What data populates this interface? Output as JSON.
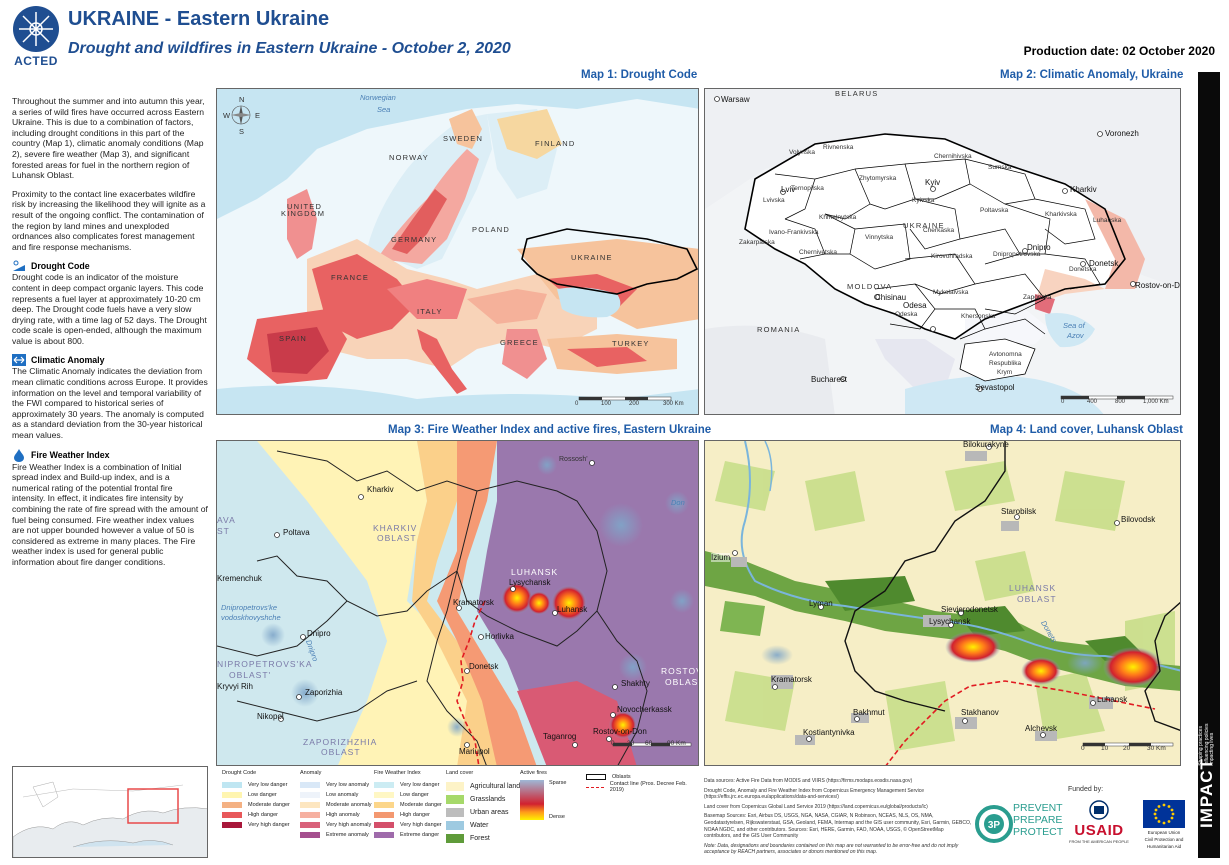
{
  "header": {
    "org": "ACTED",
    "title": "UKRAINE - Eastern Ukraine",
    "subtitle": "Drought and wildfires in Eastern Ukraine - October 2, 2020",
    "production_date": "Production date: 02 October 2020"
  },
  "side": {
    "intro_1": "Throughout the summer and into autumn this year, a series of wild fires have occurred across Eastern Ukraine. This is due to a combination of factors, including drought conditions in this part of the country (Map 1), climatic anomaly conditions (Map 2), severe fire weather (Map 3), and significant forested areas for fuel in the northern region of Luhansk Oblast.",
    "intro_2": "Proximity to the contact line exacerbates wildfire risk by increasing the likelihood they will ignite as a result of the ongoing conflict. The contamination of the region by land mines and unexploded ordnances also complicates forest management and fire response mechanisms.",
    "drought_title": "Drought Code",
    "drought_text": "Drought code is an indicator of the moisture content in deep compact organic layers. This code represents a fuel layer at approximately 10-20 cm deep. The Drought code fuels have a very slow drying rate, with a time lag of 52 days. The Drought code scale is open-ended, although the maximum value is about 800.",
    "anomaly_title": "Climatic Anomaly",
    "anomaly_text": "The Climatic Anomaly indicates the deviation from mean climatic conditions across Europe. It provides information on the level and temporal variability of the FWI compared to historical series of approximately 30 years. The anomaly is computed as a standard deviation from the 30-year historical mean values.",
    "fwi_title": "Fire Weather Index",
    "fwi_text": "Fire Weather Index is a combination of Initial spread index and Build-up index, and is a numerical rating of the potential frontal fire intensity. In effect, it indicates fire intensity by combining the rate of fire spread with the amount of fuel being consumed. Fire weather index values are not upper bounded however a value of 50 is considered as extreme in many places. The Fire weather index is used for general public information about fire danger conditions."
  },
  "map1": {
    "title": "Map 1: Drought Code",
    "labels": {
      "norwegian_sea": "Norwegian",
      "norwegian_sea2": "Sea",
      "sweden": "SWEDEN",
      "finland": "FINLAND",
      "norway": "NORWAY",
      "uk": "UNITED",
      "uk2": "KINGDOM",
      "germany": "GERMANY",
      "poland": "POLAND",
      "ukraine": "UKRAINE",
      "france": "FRANCE",
      "italy": "ITALY",
      "spain": "SPAIN",
      "greece": "GREECE",
      "turkey": "TURKEY"
    },
    "compass": {
      "n": "N",
      "s": "S",
      "e": "E",
      "w": "W"
    },
    "scale": [
      "0",
      "100",
      "200",
      "300 Km"
    ]
  },
  "map2": {
    "title": "Map 2: Climatic Anomaly, Ukraine",
    "labels": {
      "belarus": "BELARUS",
      "warsaw": "Warsaw",
      "voronezh": "Voronezh",
      "volynska": "Volynska",
      "rivnenska": "Rivnenska",
      "chernihivska": "Chernihivska",
      "sumska": "Sumska",
      "zhytomyrska": "Zhytomyrska",
      "kyiv": "Kyiv",
      "lviv": "Lviv",
      "lvivska": "Lvivska",
      "ternopilska": "Ternopilska",
      "khmelnytska": "Khmelnytska",
      "kyivska": "Kyivska",
      "poltavska": "Poltavska",
      "kharkiv": "Kharkiv",
      "kharkivska": "Kharkivska",
      "luhanska": "Luhanska",
      "ivano": "Ivano-Frankivska",
      "vinnytska": "Vinnytska",
      "ukraine": "UKRAINE",
      "cherkaska": "Cherkaska",
      "zakarpatska": "Zakarpatska",
      "chernivetska": "Chernivetska",
      "kirovohradska": "Kirovohradska",
      "dnipro": "Dnipro",
      "dnipropetrovska": "Dnipropetrovska",
      "donetsk": "Donetsk",
      "donetska": "Donetska",
      "moldova": "MOLDOVA",
      "chisinau": "Chisinau",
      "mykolaivska": "Mykolaivska",
      "zaporizka": "Zaporizka",
      "rostov": "Rostov-on-Don",
      "odeska": "Odeska",
      "odesa": "Odesa",
      "romania": "ROMANIA",
      "khersonska": "Khersonska",
      "sea_azov": "Sea of",
      "sea_azov2": "Azov",
      "crimea1": "Avtonomna",
      "crimea2": "Respublika",
      "crimea3": "Krym",
      "bucharest": "Bucharest",
      "sevastopol": "Sevastopol"
    },
    "scale": [
      "0",
      "400",
      "800",
      "1,000 Km"
    ]
  },
  "map3": {
    "title": "Map 3: Fire Weather Index and active fires, Eastern Ukraine",
    "labels": {
      "rossosh": "Rossosh'",
      "don": "Don",
      "kharkiv": "Kharkiv",
      "kharkiv_oblast1": "KHARKIV",
      "kharkiv_oblast2": "OBLAST",
      "poltava": "Poltava",
      "lava1": "AVA",
      "lava2": "ST",
      "luhansk_oblast1": "LUHANSK",
      "lysychansk": "Lysychansk",
      "luhansk": "Luhansk",
      "kramatorsk": "Kramatorsk",
      "horlivka": "Horlivka",
      "kremenchuk": "Kremenchuk",
      "dnipro": "Dnipro",
      "dnipro_river": "Dnipro",
      "dniprov_oblast1": "NIPROPETROVS'KA",
      "dniprov_oblast2": "OBLAST'",
      "dnipro_oblast_ua1": "Dnipropetrovs'ke",
      "dnipro_oblast_ua2": "vodoskhovyshche",
      "donetsk": "Donetsk",
      "rostov1": "ROSTOV",
      "rostov2": "OBLAST",
      "krivyi": "Kryvyi Rih",
      "zaporizhia": "Zaporizhia",
      "shakhty": "Shakhty",
      "nikopol": "Nikopol",
      "novocherkassk": "Novocherkassk",
      "zap_oblast1": "ZAPORIZHZHIA",
      "zap_oblast2": "OBLAST",
      "taganrog": "Taganrog",
      "rostov_city": "Rostov-on-Don",
      "mariupol": "Mariupol"
    },
    "scale": [
      "0",
      "30",
      "60",
      "90 Km"
    ]
  },
  "map4": {
    "title": "Map 4: Land cover, Luhansk Oblast",
    "labels": {
      "bilokurakyne": "Bilokurakyne",
      "starobilsk": "Starobilsk",
      "bilovodsk": "Bilovodsk",
      "izium": "Izium",
      "luhansk_oblast1": "LUHANSK",
      "luhansk_oblast2": "OBLAST",
      "lyman": "Lyman",
      "sievierodonetsk": "Sievierodonetsk",
      "lysychansk": "Lysychansk",
      "kramatorsk": "Kramatorsk",
      "luhansk": "Luhansk",
      "bakhmut": "Bakhmut",
      "stakhanov": "Stakhanov",
      "alchevsk": "Alchevsk",
      "kostiantynivka": "Kostiantynivka",
      "river": "Donets"
    },
    "scale": [
      "0",
      "10",
      "20",
      "30 Km"
    ]
  },
  "legend": {
    "drought": {
      "title": "Drought Code",
      "items": [
        {
          "label": "Very low danger",
          "color": "#bfe6f2"
        },
        {
          "label": "Low danger",
          "color": "#fff5b0"
        },
        {
          "label": "Moderate danger",
          "color": "#f4b183"
        },
        {
          "label": "High danger",
          "color": "#e8585a"
        },
        {
          "label": "Very high danger",
          "color": "#a8173a"
        }
      ]
    },
    "anomaly": {
      "title": "Anomaly",
      "items": [
        {
          "label": "Very low anomaly",
          "color": "#d9e8f7"
        },
        {
          "label": "Low anomaly",
          "color": "#eef3fa"
        },
        {
          "label": "Moderate anomaly",
          "color": "#fde6c0"
        },
        {
          "label": "High anomaly",
          "color": "#f6b0a0"
        },
        {
          "label": "Very high anomaly",
          "color": "#d9617a"
        },
        {
          "label": "Extreme anomaly",
          "color": "#a54f8f"
        }
      ]
    },
    "fwi": {
      "title": "Fire Weather Index",
      "items": [
        {
          "label": "Very low danger",
          "color": "#ccecf3"
        },
        {
          "label": "Low danger",
          "color": "#fff7c4"
        },
        {
          "label": "Moderate danger",
          "color": "#fcd68a"
        },
        {
          "label": "High danger",
          "color": "#f39870"
        },
        {
          "label": "Very high danger",
          "color": "#d44f6a"
        },
        {
          "label": "Extreme danger",
          "color": "#9f6bab"
        }
      ]
    },
    "landcover": {
      "title": "Land cover",
      "items": [
        {
          "label": "Agricultural land",
          "color": "#fdf3c7"
        },
        {
          "label": "Grasslands",
          "color": "#a6d96a"
        },
        {
          "label": "Urban areas",
          "color": "#bdbdbd"
        },
        {
          "label": "Water",
          "color": "#9ecae1"
        },
        {
          "label": "Forest",
          "color": "#5f9b3a"
        }
      ]
    },
    "fires": {
      "title": "Active fires",
      "sparse": "Sparse",
      "dense": "Dense"
    },
    "lines": {
      "oblasts": "Oblasts",
      "contact": "Contact line (Pros. Decree Feb. 2019)"
    }
  },
  "sources": {
    "s1": "Data sources: Active Fire Data from MODIS and VIIRS (https://firms.modaps.eosdis.nasa.gov)",
    "s2": "Drought Code, Anomaly and Fire Weather Index from Copernicus Emergency Management Service (https://effis.jrc.ec.europa.eu/applications/data-and-services/)",
    "s3": "Land cover from Copernicus Global Land Service 2019 (https://land.copernicus.eu/global/products/lc)",
    "s4": "Basemap Sources: Esri, Airbus DS, USGS, NGA, NASA, CGIAR, N Robinson, NCEAS, NLS, OS, NMA, Geodatastyrelsen, Rijkswaterstaat, GSA, Geoland, FEMA, Intermap and the GIS user community, Esri, Garmin, GEBCO, NOAA NGDC, and other contributors. Sources: Esri, HERE, Garmin, FAO, NOAA, USGS, © OpenStreetMap contributors, and the GIS User Community",
    "note": "Note: Data, designations and boundaries contained on this map are not warranted to be error-free and do not imply acceptance by REACH partners, associates or donors mentioned on this map."
  },
  "funders": {
    "funded_by": "Funded by:",
    "prevent1": "PREVENT",
    "prevent2": "PREPARE",
    "prevent3": "PROTECT",
    "usaid": "USAID",
    "usaid_sub": "FROM THE AMERICAN PEOPLE",
    "eu_sub1": "European Union",
    "eu_sub2": "Civil Protection and",
    "eu_sub3": "Humanitarian Aid"
  },
  "impact": {
    "word": "IMPACT",
    "tag": "Shaping practices Influencing policies Impacting lives"
  }
}
